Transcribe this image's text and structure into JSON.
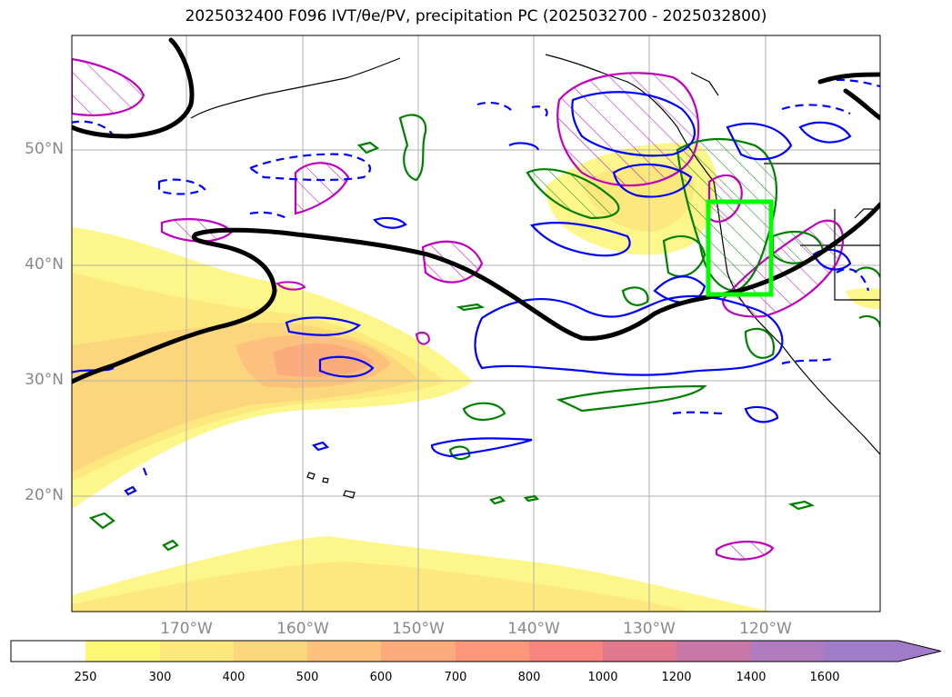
{
  "title": "2025032400 F096 IVT/θe/PV, precipitation PC (2025032700 - 2025032800)",
  "latitude_labels": [
    "50°N",
    "40°N",
    "30°N",
    "20°N"
  ],
  "longitude_labels": [
    "170°W",
    "160°W",
    "150°W",
    "140°W",
    "130°W",
    "120°W"
  ],
  "colorbar": {
    "levels": [
      "250",
      "300",
      "400",
      "500",
      "600",
      "700",
      "800",
      "1000",
      "1200",
      "1400",
      "1600"
    ],
    "colors": [
      "#ffffff",
      "#fcf874",
      "#fce87c",
      "#fcd67c",
      "#fcc17c",
      "#fcab7c",
      "#fc977c",
      "#f8847e",
      "#e0788e",
      "#c878a8",
      "#b07cc0",
      "#a07cc8"
    ]
  },
  "colors": {
    "ivt_fill": "#fcd67c",
    "pv_contour": "#000000",
    "theta_e_contour": "#0000ff",
    "precip_contour": "#008000",
    "magenta_contour": "#c000c0",
    "box": "#00ff00",
    "gridline": "#b0b0b0",
    "coastline": "#000000"
  }
}
